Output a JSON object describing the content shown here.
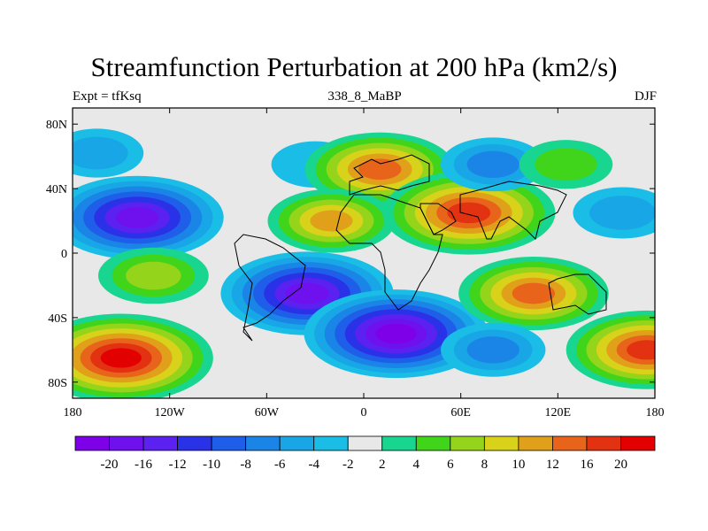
{
  "title": "Streamfunction Perturbation at 200 hPa (km2/s)",
  "left_label": "Expt = tfKsq",
  "center_label": "338_8_MaBP",
  "right_label": "DJF",
  "lat_ticks": [
    "80N",
    "40N",
    "0",
    "40S",
    "80S"
  ],
  "lon_ticks": [
    "180",
    "120W",
    "60W",
    "0",
    "60E",
    "120E",
    "180"
  ],
  "colorbar": {
    "labels": [
      "-20",
      "-16",
      "-12",
      "-10",
      "-8",
      "-6",
      "-4",
      "-2",
      "2",
      "4",
      "6",
      "8",
      "10",
      "12",
      "16",
      "20"
    ],
    "colors": [
      "#7d00e8",
      "#6f10ee",
      "#5a21f0",
      "#2a32e8",
      "#1f5ee8",
      "#1a85e6",
      "#18a6e6",
      "#19bde6",
      "#e8e8e8",
      "#18d690",
      "#40d41a",
      "#94d41a",
      "#d8d21a",
      "#e0a01a",
      "#e8641a",
      "#e23212",
      "#e20000"
    ]
  },
  "anomalies": [
    {
      "lon": -140,
      "lat": 22,
      "value": -18
    },
    {
      "lon": -165,
      "lat": 62,
      "value": -4
    },
    {
      "lon": -30,
      "lat": 55,
      "value": -3
    },
    {
      "lon": 10,
      "lat": 52,
      "value": 14
    },
    {
      "lon": -20,
      "lat": 20,
      "value": 10
    },
    {
      "lon": 65,
      "lat": 25,
      "value": 18
    },
    {
      "lon": 80,
      "lat": 55,
      "value": -6
    },
    {
      "lon": 125,
      "lat": 55,
      "value": 4
    },
    {
      "lon": 160,
      "lat": 25,
      "value": -5
    },
    {
      "lon": -130,
      "lat": -14,
      "value": 7
    },
    {
      "lon": -150,
      "lat": -65,
      "value": 20
    },
    {
      "lon": -35,
      "lat": -25,
      "value": -18
    },
    {
      "lon": 20,
      "lat": -50,
      "value": -20
    },
    {
      "lon": 105,
      "lat": -25,
      "value": 14
    },
    {
      "lon": 175,
      "lat": -60,
      "value": 16
    },
    {
      "lon": 80,
      "lat": -60,
      "value": -6
    }
  ]
}
